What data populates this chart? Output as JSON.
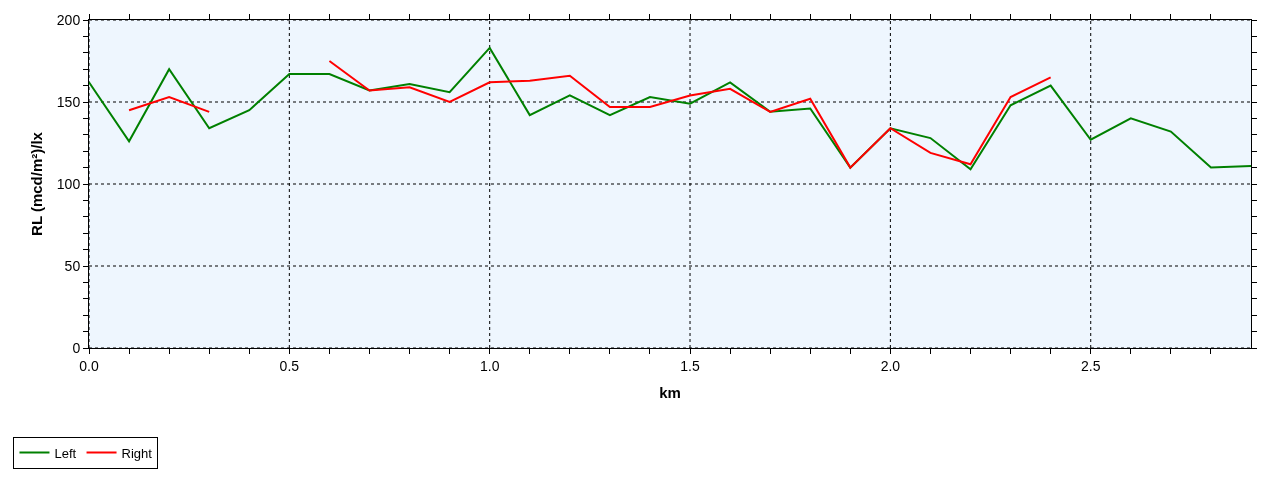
{
  "chart_data": {
    "type": "line",
    "xlabel": "km",
    "ylabel": "RL (mcd/m²)/lx",
    "x": [
      0.0,
      0.1,
      0.2,
      0.3,
      0.4,
      0.5,
      0.6,
      0.7,
      0.8,
      0.9,
      1.0,
      1.1,
      1.2,
      1.3,
      1.4,
      1.5,
      1.6,
      1.7,
      1.8,
      1.9,
      2.0,
      2.1,
      2.2,
      2.3,
      2.4,
      2.5,
      2.6,
      2.7,
      2.8,
      2.9
    ],
    "series": [
      {
        "name": "Left",
        "color": "#008000",
        "values": [
          162,
          126,
          170,
          134,
          145,
          167,
          167,
          157,
          161,
          156,
          183,
          142,
          154,
          142,
          153,
          149,
          162,
          144,
          146,
          110,
          134,
          128,
          109,
          148,
          160,
          127,
          140,
          132,
          110,
          111
        ]
      },
      {
        "name": "Right",
        "color": "#ff0000",
        "values": [
          null,
          145,
          153,
          144,
          null,
          null,
          175,
          157,
          159,
          150,
          162,
          163,
          166,
          147,
          147,
          154,
          158,
          144,
          152,
          110,
          134,
          119,
          112,
          153,
          165,
          null,
          null,
          null,
          null,
          null
        ]
      }
    ],
    "xlim": [
      0,
      2.9
    ],
    "xticks": [
      {
        "value": 0,
        "label": "0.0"
      },
      {
        "value": 0.1,
        "label": null
      },
      {
        "value": 0.2,
        "label": null
      },
      {
        "value": 0.3,
        "label": null
      },
      {
        "value": 0.4,
        "label": null
      },
      {
        "value": 0.5,
        "label": "0.5"
      },
      {
        "value": 0.6,
        "label": null
      },
      {
        "value": 0.7,
        "label": null
      },
      {
        "value": 0.8,
        "label": null
      },
      {
        "value": 0.9,
        "label": null
      },
      {
        "value": 1.0,
        "label": "1.0"
      },
      {
        "value": 1.1,
        "label": null
      },
      {
        "value": 1.2,
        "label": null
      },
      {
        "value": 1.3,
        "label": null
      },
      {
        "value": 1.4,
        "label": null
      },
      {
        "value": 1.5,
        "label": "1.5"
      },
      {
        "value": 1.6,
        "label": null
      },
      {
        "value": 1.7,
        "label": null
      },
      {
        "value": 1.8,
        "label": null
      },
      {
        "value": 1.9,
        "label": null
      },
      {
        "value": 2.0,
        "label": "2.0"
      },
      {
        "value": 2.1,
        "label": null
      },
      {
        "value": 2.2,
        "label": null
      },
      {
        "value": 2.3,
        "label": null
      },
      {
        "value": 2.4,
        "label": null
      },
      {
        "value": 2.5,
        "label": "2.5"
      },
      {
        "value": 2.6,
        "label": null
      },
      {
        "value": 2.7,
        "label": null
      },
      {
        "value": 2.8,
        "label": null
      }
    ],
    "ylim": [
      0,
      200
    ],
    "yticks": [
      0,
      {
        "value": 10,
        "label": null
      },
      {
        "value": 20,
        "label": null
      },
      {
        "value": 30,
        "label": null
      },
      {
        "value": 40,
        "label": null
      },
      50,
      {
        "value": 60,
        "label": null
      },
      {
        "value": 70,
        "label": null
      },
      {
        "value": 80,
        "label": null
      },
      {
        "value": 90,
        "label": null
      },
      100,
      {
        "value": 110,
        "label": null
      },
      {
        "value": 120,
        "label": null
      },
      {
        "value": 130,
        "label": null
      },
      {
        "value": 140,
        "label": null
      },
      150,
      {
        "value": 160,
        "label": null
      },
      {
        "value": 170,
        "label": null
      },
      {
        "value": 180,
        "label": null
      },
      {
        "value": 190,
        "label": null
      },
      200
    ],
    "grid": true,
    "legend": "bottom left",
    "line_style": "solid",
    "marker": "none"
  }
}
